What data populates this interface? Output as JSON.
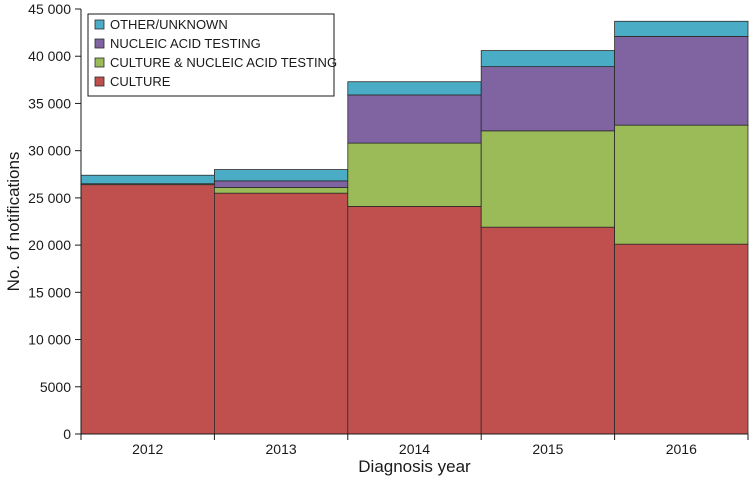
{
  "chart_data": {
    "type": "bar",
    "stacked": true,
    "title": "",
    "xlabel": "Diagnosis year",
    "ylabel": "No. of notifications",
    "categories": [
      "2012",
      "2013",
      "2014",
      "2015",
      "2016"
    ],
    "ylim": [
      0,
      45000
    ],
    "yticks": [
      0,
      5000,
      10000,
      15000,
      20000,
      25000,
      30000,
      35000,
      40000,
      45000
    ],
    "ytick_labels": [
      "0",
      "5000",
      "10 000",
      "15 000",
      "20 000",
      "25 000",
      "30 000",
      "35 000",
      "40 000",
      "45 000"
    ],
    "grid": false,
    "legend_position": "top-left",
    "series": [
      {
        "name": "CULTURE",
        "color": "#c0504d",
        "values": [
          26400,
          25500,
          24100,
          21900,
          20100
        ]
      },
      {
        "name": "CULTURE & NUCLEIC ACID TESTING",
        "color": "#9bbb59",
        "values": [
          100,
          600,
          6700,
          10200,
          12600
        ]
      },
      {
        "name": "NUCLEIC ACID TESTING",
        "color": "#8064a2",
        "values": [
          0,
          700,
          5100,
          6800,
          9400
        ]
      },
      {
        "name": "OTHER/UNKNOWN",
        "color": "#4bacc6",
        "values": [
          900,
          1200,
          1400,
          1700,
          1600
        ]
      }
    ]
  }
}
